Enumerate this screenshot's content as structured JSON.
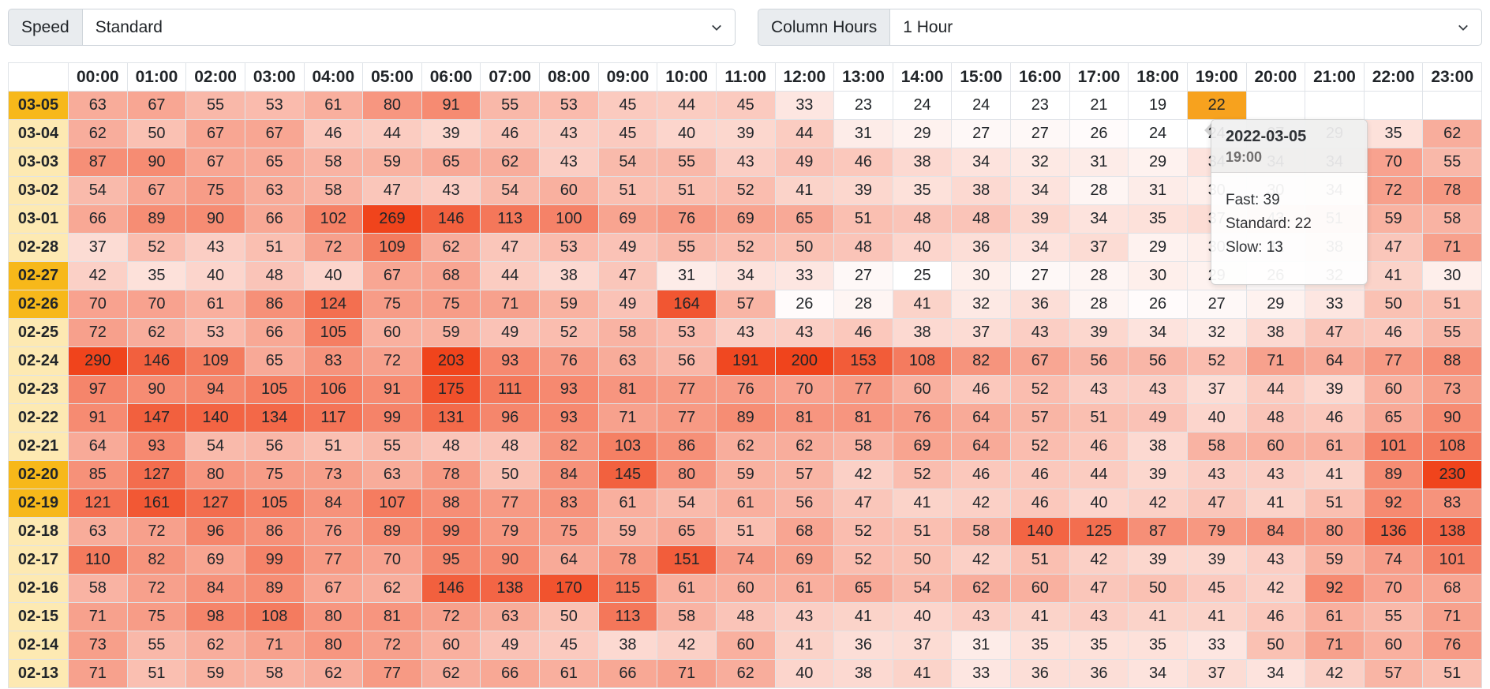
{
  "controls": {
    "speed_label": "Speed",
    "speed_value": "Standard",
    "column_label": "Column Hours",
    "column_value": "1 Hour"
  },
  "colors": {
    "low": "#ffffff",
    "high": "#f0441c",
    "highlight": "#f7a21e",
    "row_header": "#fde9b2",
    "row_header_hl": "#f7b81a"
  },
  "hours": [
    "00:00",
    "01:00",
    "02:00",
    "03:00",
    "04:00",
    "05:00",
    "06:00",
    "07:00",
    "08:00",
    "09:00",
    "10:00",
    "11:00",
    "12:00",
    "13:00",
    "14:00",
    "15:00",
    "16:00",
    "17:00",
    "18:00",
    "19:00",
    "20:00",
    "21:00",
    "22:00",
    "23:00"
  ],
  "rows": [
    {
      "date": "03-05",
      "values": [
        63,
        67,
        55,
        53,
        61,
        80,
        91,
        55,
        53,
        45,
        44,
        45,
        33,
        23,
        24,
        24,
        23,
        21,
        19,
        22,
        null,
        null,
        null,
        null
      ]
    },
    {
      "date": "03-04",
      "values": [
        62,
        50,
        67,
        67,
        46,
        44,
        39,
        46,
        43,
        45,
        40,
        39,
        44,
        31,
        29,
        27,
        27,
        26,
        24,
        24,
        27,
        29,
        35,
        62
      ]
    },
    {
      "date": "03-03",
      "values": [
        87,
        90,
        67,
        65,
        58,
        59,
        65,
        62,
        43,
        54,
        55,
        43,
        49,
        46,
        38,
        34,
        32,
        31,
        29,
        34,
        34,
        34,
        70,
        55
      ]
    },
    {
      "date": "03-02",
      "values": [
        54,
        67,
        75,
        63,
        58,
        47,
        43,
        54,
        60,
        51,
        51,
        52,
        41,
        39,
        35,
        38,
        34,
        28,
        31,
        30,
        30,
        34,
        72,
        78
      ]
    },
    {
      "date": "03-01",
      "values": [
        66,
        89,
        90,
        66,
        102,
        269,
        146,
        113,
        100,
        69,
        76,
        69,
        65,
        51,
        48,
        48,
        39,
        34,
        35,
        37,
        43,
        51,
        59,
        58
      ]
    },
    {
      "date": "02-28",
      "values": [
        37,
        52,
        43,
        51,
        72,
        109,
        62,
        47,
        53,
        49,
        55,
        52,
        50,
        48,
        40,
        36,
        34,
        37,
        29,
        30,
        31,
        38,
        47,
        71
      ]
    },
    {
      "date": "02-27",
      "values": [
        42,
        35,
        40,
        48,
        40,
        67,
        68,
        44,
        38,
        47,
        31,
        34,
        33,
        27,
        25,
        30,
        27,
        28,
        30,
        29,
        26,
        32,
        41,
        30
      ]
    },
    {
      "date": "02-26",
      "values": [
        70,
        70,
        61,
        86,
        124,
        75,
        75,
        71,
        59,
        49,
        164,
        57,
        26,
        28,
        41,
        32,
        36,
        28,
        26,
        27,
        29,
        33,
        50,
        51
      ]
    },
    {
      "date": "02-25",
      "values": [
        72,
        62,
        53,
        66,
        105,
        60,
        59,
        49,
        52,
        58,
        53,
        43,
        43,
        46,
        38,
        37,
        43,
        39,
        34,
        32,
        38,
        47,
        46,
        55
      ]
    },
    {
      "date": "02-24",
      "values": [
        290,
        146,
        109,
        65,
        83,
        72,
        203,
        93,
        76,
        63,
        56,
        191,
        200,
        153,
        108,
        82,
        67,
        56,
        56,
        52,
        71,
        64,
        77,
        88
      ]
    },
    {
      "date": "02-23",
      "values": [
        97,
        90,
        94,
        105,
        106,
        91,
        175,
        111,
        93,
        81,
        77,
        76,
        70,
        77,
        60,
        46,
        52,
        43,
        43,
        37,
        44,
        39,
        60,
        73
      ]
    },
    {
      "date": "02-22",
      "values": [
        91,
        147,
        140,
        134,
        117,
        99,
        131,
        96,
        93,
        71,
        77,
        89,
        81,
        81,
        76,
        64,
        57,
        51,
        49,
        40,
        48,
        46,
        65,
        90
      ]
    },
    {
      "date": "02-21",
      "values": [
        64,
        93,
        54,
        56,
        51,
        55,
        48,
        48,
        82,
        103,
        86,
        62,
        62,
        58,
        69,
        64,
        52,
        46,
        38,
        58,
        60,
        61,
        101,
        108
      ]
    },
    {
      "date": "02-20",
      "values": [
        85,
        127,
        80,
        75,
        73,
        63,
        78,
        50,
        84,
        145,
        80,
        59,
        57,
        42,
        52,
        46,
        46,
        44,
        39,
        43,
        43,
        41,
        89,
        230
      ]
    },
    {
      "date": "02-19",
      "values": [
        121,
        161,
        127,
        105,
        84,
        107,
        88,
        77,
        83,
        61,
        54,
        61,
        56,
        47,
        41,
        42,
        46,
        40,
        42,
        47,
        41,
        51,
        92,
        83
      ]
    },
    {
      "date": "02-18",
      "values": [
        63,
        72,
        96,
        86,
        76,
        89,
        99,
        79,
        75,
        59,
        65,
        51,
        68,
        52,
        51,
        58,
        140,
        125,
        87,
        79,
        84,
        80,
        136,
        138
      ]
    },
    {
      "date": "02-17",
      "values": [
        110,
        82,
        69,
        99,
        77,
        70,
        95,
        90,
        64,
        78,
        151,
        74,
        69,
        52,
        50,
        42,
        51,
        42,
        39,
        39,
        43,
        59,
        74,
        101
      ]
    },
    {
      "date": "02-16",
      "values": [
        58,
        72,
        84,
        89,
        67,
        62,
        146,
        138,
        170,
        115,
        61,
        60,
        61,
        65,
        54,
        62,
        60,
        47,
        50,
        45,
        42,
        92,
        70,
        68
      ]
    },
    {
      "date": "02-15",
      "values": [
        71,
        75,
        98,
        108,
        80,
        81,
        72,
        63,
        50,
        113,
        58,
        48,
        43,
        41,
        40,
        43,
        41,
        43,
        41,
        41,
        46,
        61,
        55,
        71
      ]
    },
    {
      "date": "02-14",
      "values": [
        73,
        55,
        62,
        71,
        80,
        72,
        60,
        49,
        45,
        38,
        42,
        60,
        41,
        36,
        37,
        31,
        35,
        35,
        35,
        33,
        50,
        71,
        60,
        76
      ]
    },
    {
      "date": "02-13",
      "values": [
        71,
        51,
        59,
        58,
        62,
        77,
        62,
        66,
        61,
        66,
        71,
        62,
        40,
        38,
        41,
        33,
        36,
        36,
        34,
        37,
        34,
        42,
        57,
        51
      ]
    }
  ],
  "highlighted_rows": [
    "03-05",
    "02-27",
    "02-26",
    "02-20",
    "02-19"
  ],
  "selected_cell": {
    "date": "03-05",
    "hour": "19:00"
  },
  "tooltip": {
    "date": "2022-03-05",
    "time": "19:00",
    "fast": "Fast: 39",
    "standard": "Standard: 22",
    "slow": "Slow: 13"
  }
}
